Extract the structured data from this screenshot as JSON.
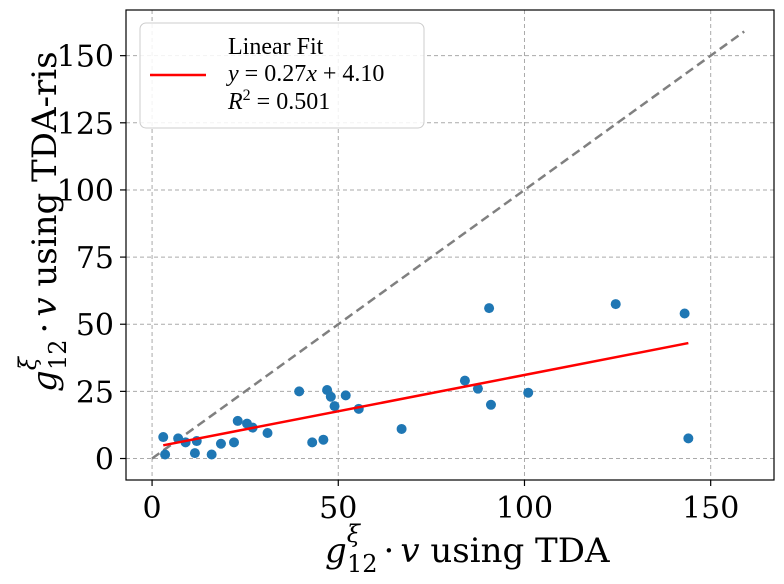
{
  "chart_data": {
    "type": "scatter",
    "xlabel": "g_{12}^{ξ} · v using TDA",
    "ylabel": "g_{12}^{ξ} · v using TDA-ris",
    "xlabel_parts": {
      "g": "g",
      "sup": "ξ",
      "sub": "12",
      "dot": "·",
      "v": "v",
      "rest": " using TDA"
    },
    "ylabel_parts": {
      "g": "g",
      "sup": "ξ",
      "sub": "12",
      "dot": "·",
      "v": "v",
      "rest": " using TDA-ris"
    },
    "xlim": [
      -7,
      167
    ],
    "ylim": [
      -8,
      167
    ],
    "x_ticks": [
      0,
      50,
      100,
      150
    ],
    "y_ticks": [
      0,
      25,
      50,
      75,
      100,
      125,
      150
    ],
    "grid": true,
    "legend_position": "top-left",
    "legend": {
      "title": "Linear Fit",
      "equation_line": "y = 0.27x + 4.10",
      "r2_line": "R² = 0.501",
      "eq": {
        "y": "y",
        "rhs": "= 0.27",
        "x": "x",
        "tail": " + 4.10"
      },
      "r2": {
        "R": "R",
        "sup": "2",
        "rhs": " = 0.501"
      }
    },
    "scatter": {
      "color": "#1f77b4",
      "points": [
        [
          3,
          8
        ],
        [
          3.5,
          1.5
        ],
        [
          7,
          7.5
        ],
        [
          9,
          6
        ],
        [
          11.5,
          2
        ],
        [
          12,
          6.5
        ],
        [
          16,
          1.5
        ],
        [
          18.5,
          5.5
        ],
        [
          22,
          6
        ],
        [
          23,
          14
        ],
        [
          25.5,
          13
        ],
        [
          27,
          11.5
        ],
        [
          31,
          9.5
        ],
        [
          39.5,
          25
        ],
        [
          43,
          6
        ],
        [
          46,
          7
        ],
        [
          47,
          25.5
        ],
        [
          48,
          23
        ],
        [
          49,
          19.5
        ],
        [
          52,
          23.5
        ],
        [
          55.5,
          18.5
        ],
        [
          67,
          11
        ],
        [
          84,
          29
        ],
        [
          87.5,
          26
        ],
        [
          90.5,
          56
        ],
        [
          91,
          20
        ],
        [
          101,
          24.5
        ],
        [
          124.5,
          57.5
        ],
        [
          143,
          54
        ],
        [
          144,
          7.5
        ]
      ]
    },
    "fit_line": {
      "color": "#ff0000",
      "slope": 0.27,
      "intercept": 4.1,
      "x_range": [
        3,
        144
      ]
    },
    "identity_line": {
      "color": "#808080",
      "x_range": [
        0,
        159
      ]
    }
  }
}
